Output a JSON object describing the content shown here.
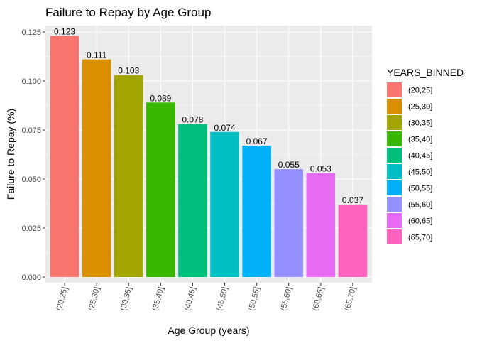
{
  "chart_data": {
    "type": "bar",
    "title": "Failure to Repay by Age Group",
    "xlabel": "Age Group (years)",
    "ylabel": "Failure to Repay (%)",
    "categories": [
      "(20,25]",
      "(25,30]",
      "(30,35]",
      "(35,40]",
      "(40,45]",
      "(45,50]",
      "(50,55]",
      "(55,60]",
      "(60,65]",
      "(65,70]"
    ],
    "values": [
      0.123,
      0.111,
      0.103,
      0.089,
      0.078,
      0.074,
      0.067,
      0.055,
      0.053,
      0.037
    ],
    "data_labels": [
      "0.123",
      "0.111",
      "0.103",
      "0.089",
      "0.078",
      "0.074",
      "0.067",
      "0.055",
      "0.053",
      "0.037"
    ],
    "colors": [
      "#F8766D",
      "#D89000",
      "#A3A500",
      "#39B600",
      "#00BF7D",
      "#00BFC4",
      "#00B0F6",
      "#9590FF",
      "#E76BF3",
      "#FF62BC"
    ],
    "ylim": [
      0,
      0.13
    ],
    "yticks": [
      0.0,
      0.025,
      0.05,
      0.075,
      0.1,
      0.125
    ],
    "ytick_labels": [
      "0.000",
      "0.025",
      "0.050",
      "0.075",
      "0.100",
      "0.125"
    ],
    "grid": true,
    "panel_background": "#EBEBEB",
    "legend": {
      "title": "YEARS_BINNED",
      "position": "right",
      "entries": [
        "(20,25]",
        "(25,30]",
        "(30,35]",
        "(35,40]",
        "(40,45]",
        "(45,50]",
        "(50,55]",
        "(55,60]",
        "(60,65]",
        "(65,70]"
      ]
    }
  }
}
